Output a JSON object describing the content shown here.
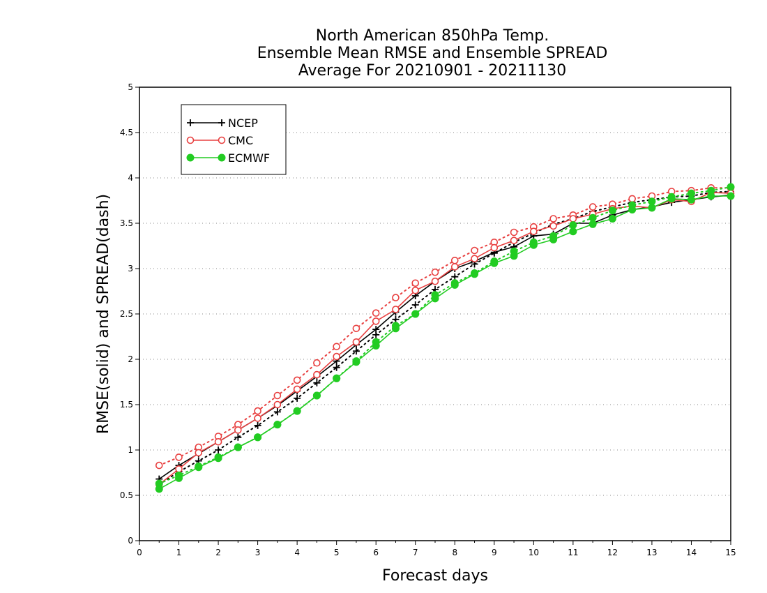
{
  "chart_data": {
    "type": "line",
    "title": [
      "North American 850hPa Temp.",
      "Ensemble Mean RMSE and Ensemble SPREAD",
      "Average For 20210901 - 20211130"
    ],
    "xlabel": "Forecast days",
    "ylabel": "RMSE(solid)  and  SPREAD(dash)",
    "xlim": [
      0,
      15
    ],
    "ylim": [
      0,
      5
    ],
    "xticks": [
      "0",
      "1",
      "2",
      "3",
      "4",
      "5",
      "6",
      "7",
      "8",
      "9",
      "10",
      "11",
      "12",
      "13",
      "14",
      "15"
    ],
    "yticks": [
      "0",
      "0.5",
      "1",
      "1.5",
      "2",
      "2.5",
      "3",
      "3.5",
      "4",
      "4.5",
      "5"
    ],
    "grid": "horizontal dotted",
    "legend_position": "top-left",
    "x": [
      0.5,
      1,
      1.5,
      2,
      2.5,
      3,
      3.5,
      4,
      4.5,
      5,
      5.5,
      6,
      6.5,
      7,
      7.5,
      8,
      8.5,
      9,
      9.5,
      10,
      10.5,
      11,
      11.5,
      12,
      12.5,
      13,
      13.5,
      14,
      14.5,
      15
    ],
    "series": [
      {
        "name": "NCEP",
        "color": "#000000",
        "marker": "plus",
        "rmse": [
          0.68,
          0.83,
          0.96,
          1.09,
          1.22,
          1.35,
          1.49,
          1.65,
          1.81,
          1.98,
          2.16,
          2.33,
          2.52,
          2.7,
          2.86,
          3.0,
          3.08,
          3.18,
          3.24,
          3.36,
          3.38,
          3.5,
          3.5,
          3.59,
          3.65,
          3.68,
          3.73,
          3.76,
          3.79,
          3.81
        ],
        "spread": [
          0.62,
          0.76,
          0.88,
          1.0,
          1.14,
          1.27,
          1.42,
          1.57,
          1.74,
          1.91,
          2.09,
          2.27,
          2.44,
          2.6,
          2.77,
          2.91,
          3.05,
          3.17,
          3.29,
          3.39,
          3.49,
          3.55,
          3.63,
          3.68,
          3.73,
          3.76,
          3.79,
          3.8,
          3.84,
          3.85
        ]
      },
      {
        "name": "CMC",
        "color": "#e84040",
        "marker": "open-circle",
        "rmse": [
          0.62,
          0.79,
          0.97,
          1.09,
          1.22,
          1.35,
          1.5,
          1.67,
          1.83,
          2.03,
          2.19,
          2.42,
          2.55,
          2.76,
          2.86,
          3.02,
          3.11,
          3.23,
          3.31,
          3.41,
          3.47,
          3.55,
          3.6,
          3.66,
          3.69,
          3.67,
          3.76,
          3.74,
          3.84,
          3.83
        ],
        "spread": [
          0.83,
          0.92,
          1.03,
          1.15,
          1.28,
          1.43,
          1.6,
          1.77,
          1.96,
          2.14,
          2.34,
          2.51,
          2.68,
          2.84,
          2.96,
          3.09,
          3.2,
          3.29,
          3.4,
          3.46,
          3.55,
          3.59,
          3.68,
          3.71,
          3.77,
          3.8,
          3.85,
          3.86,
          3.89,
          3.89
        ]
      },
      {
        "name": "ECMWF",
        "color": "#22cc22",
        "marker": "filled-circle",
        "rmse": [
          0.57,
          0.69,
          0.81,
          0.91,
          1.03,
          1.14,
          1.28,
          1.43,
          1.6,
          1.79,
          1.97,
          2.15,
          2.34,
          2.5,
          2.67,
          2.82,
          2.94,
          3.06,
          3.14,
          3.26,
          3.32,
          3.41,
          3.49,
          3.55,
          3.65,
          3.67,
          3.77,
          3.76,
          3.8,
          3.8
        ],
        "spread": [
          0.63,
          0.72,
          0.82,
          0.92,
          1.03,
          1.14,
          1.28,
          1.43,
          1.6,
          1.79,
          1.98,
          2.19,
          2.37,
          2.5,
          2.71,
          2.84,
          2.95,
          3.08,
          3.19,
          3.29,
          3.36,
          3.48,
          3.56,
          3.64,
          3.7,
          3.74,
          3.79,
          3.83,
          3.86,
          3.9
        ]
      }
    ]
  }
}
